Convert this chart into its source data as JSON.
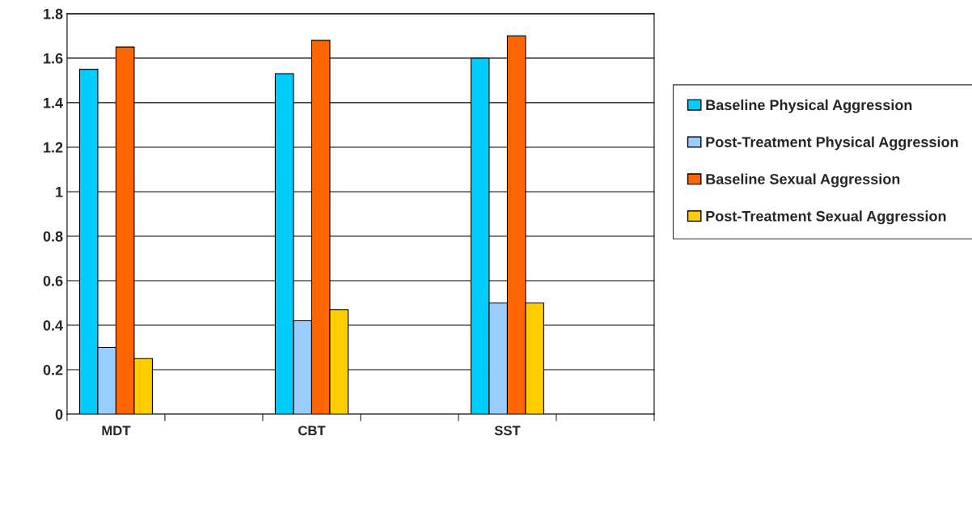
{
  "chart_data": {
    "type": "bar",
    "categories": [
      "MDT",
      null,
      "CBT",
      null,
      "SST",
      null
    ],
    "series": [
      {
        "name": "Baseline Physical Aggression",
        "color": "#00ccff",
        "values": [
          1.55,
          null,
          1.53,
          null,
          1.6,
          null
        ]
      },
      {
        "name": "Post-Treatment Physical Aggression",
        "color": "#99ccff",
        "values": [
          0.3,
          null,
          0.42,
          null,
          0.5,
          null
        ]
      },
      {
        "name": "Baseline Sexual Aggression",
        "color": "#ff6600",
        "values": [
          1.65,
          null,
          1.68,
          null,
          1.7,
          null
        ]
      },
      {
        "name": "Post-Treatment Sexual Aggression",
        "color": "#ffcc00",
        "values": [
          0.25,
          null,
          0.47,
          null,
          0.5,
          null
        ]
      }
    ],
    "ylim": [
      0,
      1.8
    ],
    "yticks": [
      0,
      0.2,
      0.4,
      0.6,
      0.8,
      1,
      1.2,
      1.4,
      1.6,
      1.8
    ],
    "grid": "y",
    "legend": "right"
  }
}
